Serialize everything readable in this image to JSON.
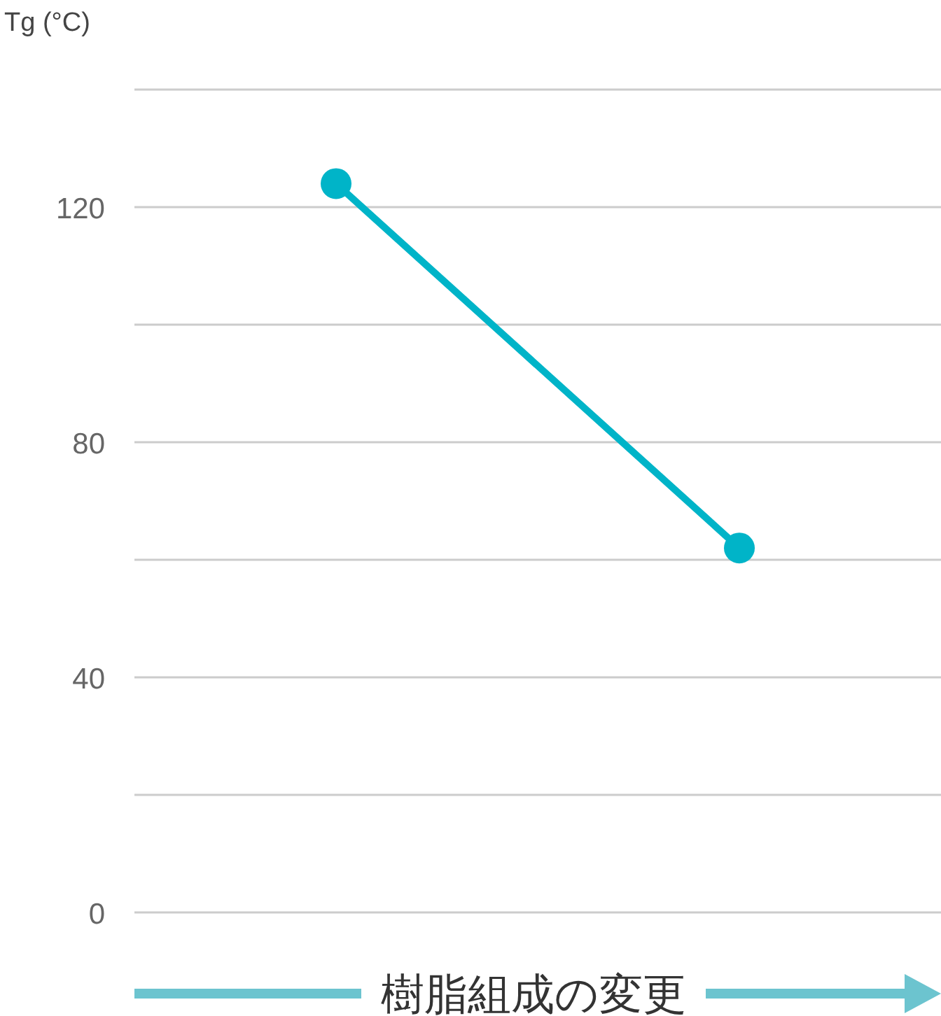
{
  "chart_data": {
    "type": "line",
    "ylabel": "Tg (°C)",
    "xlabel": "樹脂組成の変更",
    "categories": [
      null,
      null
    ],
    "series": [
      {
        "color": "#00b4c8",
        "values": [
          124,
          62
        ]
      }
    ],
    "ylim": [
      0,
      140
    ],
    "yticks": [
      0,
      {
        "value": 20,
        "label": null
      },
      40,
      {
        "value": 60,
        "label": null
      },
      80,
      {
        "value": 100,
        "label": null
      },
      120,
      {
        "value": 140,
        "label": null
      }
    ],
    "grid": "y",
    "marker": "circle",
    "line_style": "solid"
  }
}
